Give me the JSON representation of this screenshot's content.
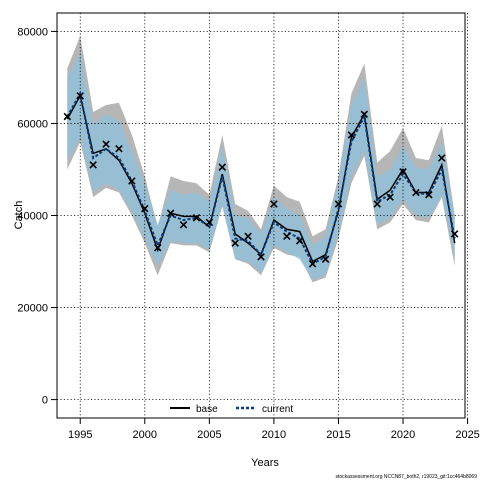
{
  "chart_data": {
    "type": "line",
    "xlabel": "Years",
    "ylabel": "Catch",
    "xlim": [
      1993.2,
      2024.8
    ],
    "ylim": [
      -4000,
      84000
    ],
    "xticks": [
      1995,
      2000,
      2005,
      2010,
      2015,
      2020,
      2025
    ],
    "yticks": [
      0,
      20000,
      40000,
      60000,
      80000
    ],
    "grid": true,
    "legend_position": "bottom-center",
    "footer_text": "stockassessment.org NCCN87_both2, r19023_git:1cc464b8069",
    "colors": {
      "base_band": "#a9a9a9",
      "current_band": "#8ec0dc",
      "base_line": "#000000",
      "current_line": "#0b3a78",
      "observed_marker": "#000000"
    },
    "years": [
      1994,
      1995,
      1996,
      1997,
      1998,
      1999,
      2000,
      2001,
      2002,
      2003,
      2004,
      2005,
      2006,
      2007,
      2008,
      2009,
      2010,
      2011,
      2012,
      2013,
      2014,
      2015,
      2016,
      2017,
      2018,
      2019,
      2020,
      2021,
      2022,
      2023,
      2024
    ],
    "series": [
      {
        "name": "base",
        "values": [
          61000,
          66000,
          53500,
          54500,
          52000,
          47000,
          40500,
          32500,
          40500,
          39800,
          39800,
          37500,
          49000,
          36000,
          34000,
          31500,
          39000,
          37000,
          36500,
          30000,
          31500,
          41000,
          57000,
          62000,
          43500,
          45500,
          50000,
          45000,
          45000,
          51000,
          34000
        ],
        "lower": [
          50000,
          56000,
          44000,
          46000,
          45000,
          40000,
          34000,
          27000,
          34000,
          33500,
          33500,
          32000,
          42000,
          30500,
          29500,
          27000,
          33000,
          31500,
          31000,
          25500,
          26500,
          35000,
          47000,
          53000,
          37000,
          38500,
          42500,
          39000,
          38500,
          44000,
          29000
        ],
        "upper": [
          72000,
          79000,
          62500,
          64000,
          64500,
          57500,
          48500,
          37500,
          48500,
          47500,
          47000,
          44500,
          57500,
          42500,
          41000,
          37000,
          46500,
          44000,
          43000,
          35500,
          37000,
          48500,
          66500,
          73000,
          51500,
          54000,
          59000,
          52500,
          52000,
          59500,
          40000
        ]
      },
      {
        "name": "current",
        "values": [
          61500,
          66500,
          52500,
          54500,
          52500,
          47500,
          41000,
          33500,
          40000,
          39000,
          39500,
          37500,
          48500,
          35000,
          34500,
          31500,
          38500,
          36500,
          35000,
          29500,
          31000,
          41500,
          56000,
          61500,
          43000,
          44500,
          49000,
          45000,
          44500,
          50000,
          35000
        ],
        "lower": [
          52000,
          57000,
          45000,
          47000,
          45500,
          41000,
          35000,
          29000,
          34500,
          34000,
          34000,
          32500,
          42000,
          30500,
          30000,
          27500,
          33500,
          32000,
          30500,
          26000,
          27000,
          36000,
          48500,
          54000,
          38000,
          39500,
          43500,
          40000,
          39500,
          44500,
          31000
        ],
        "upper": [
          70000,
          75500,
          60000,
          62000,
          60500,
          54000,
          47000,
          38000,
          45500,
          44500,
          45000,
          43000,
          55000,
          40000,
          39500,
          36000,
          44000,
          41500,
          40000,
          33500,
          35500,
          47500,
          64000,
          70000,
          48500,
          50000,
          55000,
          50500,
          50000,
          56000,
          39500
        ]
      }
    ],
    "observed": [
      61500,
      66000,
      51000,
      55500,
      54500,
      47500,
      41500,
      33000,
      40500,
      38000,
      39500,
      38500,
      50500,
      34000,
      35500,
      31000,
      42500,
      35500,
      34500,
      29500,
      30500,
      42500,
      57500,
      62000,
      42500,
      44000,
      49500,
      45000,
      44500,
      52500,
      36000
    ]
  }
}
